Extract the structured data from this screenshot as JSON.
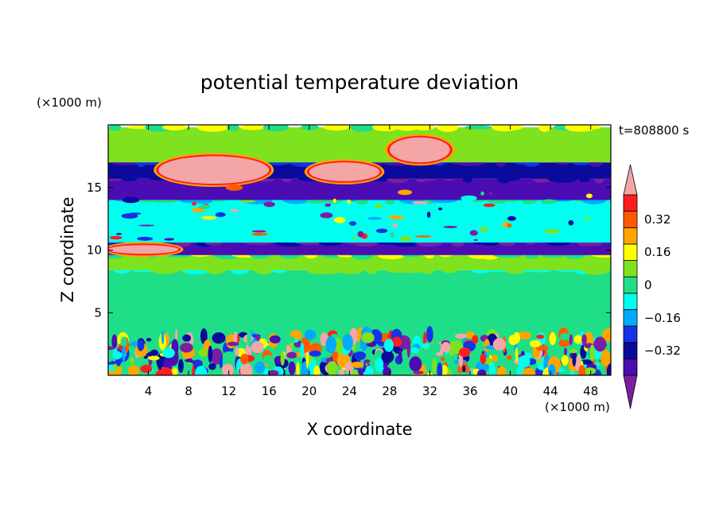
{
  "chart_data": {
    "type": "heatmap",
    "title": "potential temperature deviation",
    "xlabel": "X coordinate",
    "ylabel": "Z coordinate",
    "x_unit": "(×1000 m)",
    "y_unit": "(×1000 m)",
    "time_label": "t=808800 s",
    "xlim": [
      0,
      50
    ],
    "ylim": [
      0,
      20
    ],
    "x_ticks": [
      "4",
      "8",
      "12",
      "16",
      "20",
      "24",
      "28",
      "32",
      "36",
      "40",
      "44",
      "48"
    ],
    "y_ticks": [
      "5",
      "10",
      "15"
    ],
    "colorbar": {
      "levels": [
        -0.48,
        -0.4,
        -0.32,
        -0.24,
        -0.16,
        -0.08,
        0,
        0.08,
        0.16,
        0.24,
        0.32,
        0.4,
        0.48
      ],
      "colors": [
        "#7a1fa2",
        "#4b0cb4",
        "#0a0a9c",
        "#1432e6",
        "#00aaff",
        "#00ffee",
        "#1edf87",
        "#7ee21e",
        "#ffff00",
        "#ffa500",
        "#ff5a00",
        "#ff1e1e",
        "#f4a6a6"
      ],
      "labels": [
        "0.32",
        "0.16",
        "0",
        "−0.16",
        "−0.32"
      ],
      "extend": "both"
    },
    "bands": [
      {
        "z": [
          0,
          3.3
        ],
        "value": "mixed: -0.48 to 0.48 (turbulent)"
      },
      {
        "z": [
          3.3,
          8.4
        ],
        "value": 0.0
      },
      {
        "z": [
          8.4,
          9.6
        ],
        "value": 0.08
      },
      {
        "z": [
          9.6,
          10.6
        ],
        "value": -0.4
      },
      {
        "z": [
          10.6,
          14.0
        ],
        "value": -0.08
      },
      {
        "z": [
          14.0,
          15.7
        ],
        "value": -0.4
      },
      {
        "z": [
          15.7,
          17.0
        ],
        "value": -0.32
      },
      {
        "z": [
          17.0,
          19.8
        ],
        "value": 0.08
      }
    ],
    "anomalies": [
      {
        "x": [
          5,
          16
        ],
        "z": [
          15.3,
          17.5
        ],
        "value": 0.48
      },
      {
        "x": [
          20,
          27
        ],
        "z": [
          15.5,
          17.0
        ],
        "value": 0.48
      },
      {
        "x": [
          0,
          7
        ],
        "z": [
          9.7,
          10.4
        ],
        "value": 0.48
      },
      {
        "x": [
          28,
          34
        ],
        "z": [
          17.0,
          19.0
        ],
        "value": 0.48
      }
    ]
  }
}
